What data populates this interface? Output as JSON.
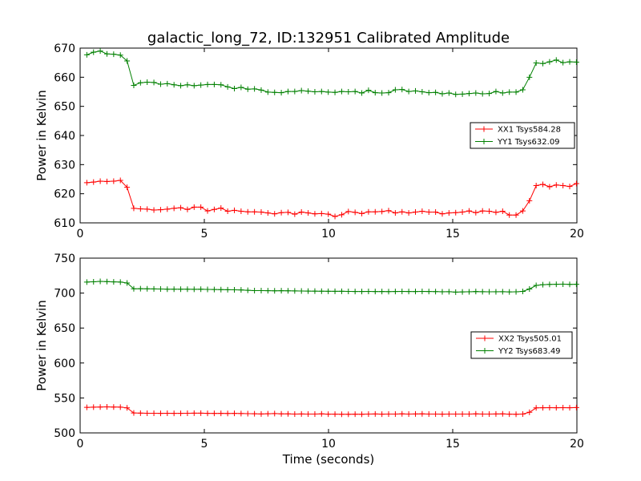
{
  "title": "galactic_long_72, ID:132951 Calibrated Amplitude",
  "chart_data": [
    {
      "type": "line",
      "ylabel": "Power in Kelvin",
      "xlabel": "",
      "xlim": [
        0,
        20
      ],
      "ylim": [
        610,
        670
      ],
      "xticks": [
        0,
        5,
        10,
        15,
        20
      ],
      "yticks": [
        610,
        620,
        630,
        640,
        650,
        660,
        670
      ],
      "legend_position": "center-right",
      "x": [
        0.27,
        0.54,
        0.81,
        1.08,
        1.35,
        1.62,
        1.89,
        2.16,
        2.43,
        2.7,
        2.97,
        3.24,
        3.51,
        3.78,
        4.05,
        4.32,
        4.59,
        4.86,
        5.13,
        5.4,
        5.67,
        5.94,
        6.21,
        6.48,
        6.75,
        7.02,
        7.29,
        7.56,
        7.83,
        8.1,
        8.37,
        8.64,
        8.91,
        9.18,
        9.45,
        9.72,
        9.99,
        10.26,
        10.53,
        10.8,
        11.07,
        11.34,
        11.61,
        11.88,
        12.15,
        12.42,
        12.69,
        12.96,
        13.23,
        13.5,
        13.77,
        14.04,
        14.31,
        14.58,
        14.85,
        15.12,
        15.39,
        15.66,
        15.93,
        16.2,
        16.47,
        16.74,
        17.01,
        17.28,
        17.55,
        17.82,
        18.09,
        18.36,
        18.63,
        18.9,
        19.17,
        19.44,
        19.71,
        19.98
      ],
      "series": [
        {
          "name": "XX1 Tsys584.28",
          "color": "#ff0000",
          "values": [
            623.8,
            624.0,
            624.3,
            624.2,
            624.3,
            624.6,
            622.2,
            615.0,
            614.8,
            614.7,
            614.4,
            614.5,
            614.7,
            615.0,
            615.2,
            614.6,
            615.4,
            615.4,
            614.1,
            614.6,
            615.1,
            614.0,
            614.3,
            614.0,
            613.8,
            613.8,
            613.7,
            613.4,
            613.1,
            613.5,
            613.6,
            613.0,
            613.7,
            613.4,
            613.1,
            613.2,
            613.0,
            612.2,
            612.8,
            613.9,
            613.6,
            613.2,
            613.8,
            613.8,
            613.9,
            614.2,
            613.4,
            613.8,
            613.4,
            613.7,
            614.0,
            613.7,
            613.7,
            613.1,
            613.4,
            613.5,
            613.7,
            614.1,
            613.5,
            614.1,
            614.0,
            613.6,
            614.0,
            612.7,
            612.7,
            614.1,
            617.6,
            622.8,
            623.2,
            622.4,
            623.0,
            622.8,
            622.5,
            623.5
          ]
        },
        {
          "name": "YY1 Tsys632.09",
          "color": "#008000",
          "values": [
            667.7,
            668.6,
            669.0,
            668.0,
            667.9,
            667.6,
            665.6,
            657.2,
            658.1,
            658.3,
            658.2,
            657.6,
            657.8,
            657.4,
            657.1,
            657.4,
            657.1,
            657.3,
            657.5,
            657.5,
            657.4,
            656.7,
            656.1,
            656.5,
            655.9,
            656.0,
            655.6,
            654.9,
            654.8,
            654.7,
            655.1,
            655.1,
            655.4,
            655.2,
            655.0,
            655.1,
            654.9,
            654.8,
            655.1,
            655.0,
            655.1,
            654.6,
            655.5,
            654.7,
            654.6,
            654.7,
            655.7,
            655.8,
            655.1,
            655.3,
            655.0,
            654.7,
            654.8,
            654.3,
            654.6,
            654.1,
            654.2,
            654.4,
            654.6,
            654.3,
            654.4,
            655.1,
            654.6,
            654.9,
            654.9,
            655.7,
            660.0,
            664.9,
            664.7,
            665.3,
            665.9,
            665.0,
            665.3,
            665.2
          ]
        }
      ]
    },
    {
      "type": "line",
      "ylabel": "Power in Kelvin",
      "xlabel": "Time (seconds)",
      "xlim": [
        0,
        20
      ],
      "ylim": [
        500,
        750
      ],
      "xticks": [
        0,
        5,
        10,
        15,
        20
      ],
      "yticks": [
        500,
        550,
        600,
        650,
        700,
        750
      ],
      "legend_position": "center-right",
      "x": [
        0.27,
        0.54,
        0.81,
        1.08,
        1.35,
        1.62,
        1.89,
        2.16,
        2.43,
        2.7,
        2.97,
        3.24,
        3.51,
        3.78,
        4.05,
        4.32,
        4.59,
        4.86,
        5.13,
        5.4,
        5.67,
        5.94,
        6.21,
        6.48,
        6.75,
        7.02,
        7.29,
        7.56,
        7.83,
        8.1,
        8.37,
        8.64,
        8.91,
        9.18,
        9.45,
        9.72,
        9.99,
        10.26,
        10.53,
        10.8,
        11.07,
        11.34,
        11.61,
        11.88,
        12.15,
        12.42,
        12.69,
        12.96,
        13.23,
        13.5,
        13.77,
        14.04,
        14.31,
        14.58,
        14.85,
        15.12,
        15.39,
        15.66,
        15.93,
        16.2,
        16.47,
        16.74,
        17.01,
        17.28,
        17.55,
        17.82,
        18.09,
        18.36,
        18.63,
        18.9,
        19.17,
        19.44,
        19.71,
        19.98
      ],
      "series": [
        {
          "name": "XX2 Tsys505.01",
          "color": "#ff0000",
          "values": [
            536.5,
            536.8,
            537.0,
            537.2,
            537.0,
            536.9,
            535.8,
            528.5,
            528.3,
            528.1,
            528.1,
            528.0,
            528.1,
            528.0,
            528.0,
            528.1,
            528.2,
            528.2,
            528.0,
            527.9,
            528.0,
            527.8,
            527.9,
            527.7,
            527.5,
            527.4,
            527.1,
            527.4,
            527.6,
            527.3,
            527.2,
            527.0,
            527.1,
            526.9,
            527.0,
            527.2,
            526.8,
            526.8,
            526.7,
            526.6,
            526.8,
            526.7,
            527.0,
            527.1,
            526.8,
            526.9,
            527.0,
            527.2,
            527.0,
            527.1,
            527.3,
            527.0,
            526.9,
            526.8,
            527.0,
            526.9,
            527.0,
            527.0,
            527.2,
            527.0,
            526.9,
            527.1,
            527.2,
            526.8,
            526.6,
            527.0,
            529.5,
            535.8,
            536.0,
            536.1,
            536.0,
            536.1,
            536.0,
            536.2
          ]
        },
        {
          "name": "YY2 Tsys683.49",
          "color": "#008000",
          "values": [
            715.8,
            716.2,
            716.8,
            716.4,
            716.0,
            715.8,
            714.5,
            706.2,
            706.3,
            706.1,
            706.0,
            705.8,
            705.6,
            705.5,
            705.6,
            705.5,
            705.4,
            705.5,
            705.3,
            705.2,
            705.0,
            704.8,
            704.7,
            704.5,
            704.0,
            703.6,
            703.5,
            703.4,
            703.3,
            703.4,
            703.2,
            703.1,
            703.0,
            702.9,
            702.8,
            702.7,
            702.6,
            702.5,
            702.6,
            702.4,
            702.3,
            702.3,
            702.4,
            702.2,
            702.3,
            702.1,
            702.3,
            702.4,
            702.3,
            702.2,
            702.4,
            702.3,
            702.1,
            701.9,
            702.0,
            701.4,
            701.7,
            701.9,
            702.2,
            702.0,
            701.8,
            701.9,
            702.0,
            701.7,
            701.8,
            702.4,
            705.8,
            711.0,
            712.0,
            712.4,
            712.6,
            712.8,
            712.5,
            712.6
          ]
        }
      ]
    }
  ]
}
